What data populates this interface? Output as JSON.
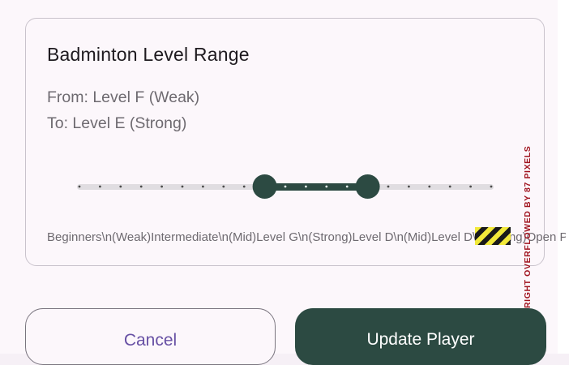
{
  "card": {
    "title": "Badminton Level Range",
    "from": "From: Level F (Weak)",
    "to": "To: Level E (Strong)"
  },
  "slider": {
    "divisions": 20,
    "start_index": 9,
    "end_index": 14,
    "active_color": "#2c4a42",
    "inactive_color": "#e0dde1"
  },
  "labels_row": "Beginners\\n(Weak)Intermediate\\n(Mid)Level G\\n(Strong)Level D\\n(Mid)Level D\\n(Strong)Open Player",
  "overflow_warning": "RIGHT OVERFLOWED BY 87 PIXELS",
  "buttons": {
    "cancel": "Cancel",
    "update": "Update Player"
  },
  "colors": {
    "primary": "#2c4a42",
    "cancel_text": "#6750a4",
    "warning": "#a0141f"
  }
}
